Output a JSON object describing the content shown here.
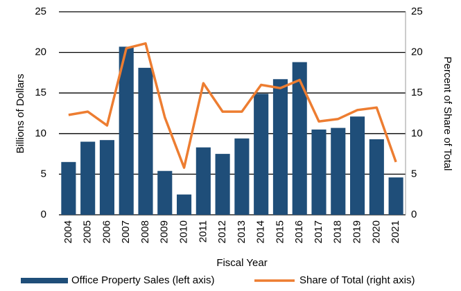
{
  "chart_data": {
    "type": "bar",
    "x_label": "Fiscal Year",
    "y_label": "Billions of Dollars",
    "y2_label": "Percent of Share of Total",
    "categories": [
      "2004",
      "2005",
      "2006",
      "2007",
      "2008",
      "2009",
      "2010",
      "2011",
      "2012",
      "2013",
      "2014",
      "2015",
      "2016",
      "2017",
      "2018",
      "2019",
      "2020",
      "2021"
    ],
    "series": [
      {
        "name": "Office Property Sales (left axis)",
        "type": "bar",
        "color": "#1f4e79",
        "values": [
          6.5,
          9.0,
          9.2,
          20.7,
          18.1,
          5.4,
          2.5,
          8.3,
          7.5,
          9.4,
          14.9,
          16.7,
          18.8,
          10.5,
          10.7,
          12.1,
          9.3,
          4.6
        ]
      },
      {
        "name": "Share of Total (right axis)",
        "type": "line",
        "axis": "y2",
        "color": "#ed7d31",
        "values": [
          12.3,
          12.7,
          11.0,
          20.5,
          21.1,
          12.0,
          5.8,
          16.2,
          12.7,
          12.7,
          16.0,
          15.6,
          16.6,
          11.5,
          11.8,
          12.9,
          13.2,
          6.5
        ]
      }
    ],
    "ylim": [
      0,
      25
    ],
    "yticks": [
      0,
      5,
      10,
      15,
      20,
      25
    ],
    "y2lim": [
      0,
      25
    ],
    "y2ticks": [
      0,
      5,
      10,
      15,
      20,
      25
    ],
    "grid": true
  }
}
